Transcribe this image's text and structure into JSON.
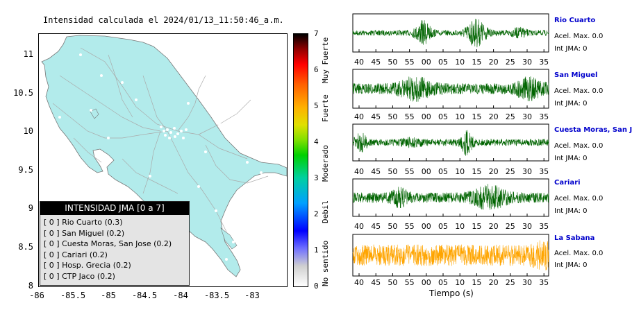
{
  "map": {
    "title": "Intensidad calculada el 2024/01/13_11:50:46_a.m.",
    "yticks": [
      "11",
      "10.5",
      "10",
      "9.5",
      "9",
      "8.5",
      "8"
    ],
    "xticks": [
      "-86",
      "-85.5",
      "-85",
      "-84.5",
      "-84",
      "-83.5",
      "-83"
    ],
    "land_color": "#b2ebeb",
    "legend": {
      "header": "INTENSIDAD JMA [0 a 7]",
      "rows": [
        "[ 0 ] Rio Cuarto (0.3)",
        "[ 0 ] San Miguel (0.2)",
        "[ 0 ] Cuesta Moras, San Jose (0.2)",
        "[ 0 ] Cariari (0.2)",
        "[ 0 ] Hosp. Grecia (0.2)",
        "[ 0 ] CTP Jaco (0.2)"
      ]
    }
  },
  "colorbar": {
    "ticks": [
      "7",
      "6",
      "5",
      "4",
      "3",
      "2",
      "1",
      "0"
    ],
    "words": [
      "Muy Fuerte",
      "Fuerte",
      "Moderado",
      "Debil",
      "No sentido"
    ]
  },
  "waveforms": {
    "xlabel": "Tiempo (s)",
    "stations": [
      {
        "name": "Rio Cuarto",
        "acel": "Acel. Max. 0.0",
        "int": "Int JMA: 0",
        "color": "#006400",
        "ticks": [
          "40",
          "45",
          "50",
          "55",
          "00",
          "05",
          "10",
          "15",
          "20",
          "25",
          "30",
          "35"
        ]
      },
      {
        "name": "San Miguel",
        "acel": "Acel. Max. 0.0",
        "int": "Int JMA: 0",
        "color": "#006400",
        "ticks": [
          "40",
          "45",
          "50",
          "55",
          "00",
          "05",
          "10",
          "15",
          "20",
          "25",
          "30",
          "35"
        ]
      },
      {
        "name": "Cuesta Moras, San Jose",
        "acel": "Acel. Max. 0.0",
        "int": "Int JMA: 0",
        "color": "#006400",
        "ticks": [
          "40",
          "45",
          "50",
          "55",
          "00",
          "05",
          "10",
          "15",
          "20",
          "25",
          "30",
          "35"
        ]
      },
      {
        "name": "Cariari",
        "acel": "Acel. Max. 0.0",
        "int": "Int JMA: 0",
        "color": "#006400",
        "ticks": [
          "40",
          "45",
          "50",
          "55",
          "00",
          "05",
          "10",
          "15",
          "20",
          "25",
          "30",
          "35"
        ]
      },
      {
        "name": "La Sabana",
        "acel": "Acel. Max. 0.0",
        "int": "Int JMA: 0",
        "color": "#ffa500",
        "ticks": [
          "40",
          "45",
          "50",
          "55",
          "00",
          "05",
          "10",
          "15",
          "20",
          "25",
          "30",
          "35"
        ]
      }
    ]
  },
  "chart_data": [
    {
      "type": "map",
      "title": "Intensidad calculada el 2024/01/13_11:50:46_a.m.",
      "xlim": [
        -86,
        -82.6
      ],
      "ylim": [
        8,
        11.3
      ],
      "colorbar": {
        "range": [
          0,
          7
        ],
        "labels": [
          "No sentido",
          "Debil",
          "Moderado",
          "Fuerte",
          "Muy Fuerte"
        ]
      }
    },
    {
      "type": "line",
      "xlabel": "Tiempo (s)",
      "series": [
        {
          "name": "Rio Cuarto",
          "acel_max": 0.0,
          "int_jma": 0
        },
        {
          "name": "San Miguel",
          "acel_max": 0.0,
          "int_jma": 0
        },
        {
          "name": "Cuesta Moras, San Jose",
          "acel_max": 0.0,
          "int_jma": 0
        },
        {
          "name": "Cariari",
          "acel_max": 0.0,
          "int_jma": 0
        },
        {
          "name": "La Sabana",
          "acel_max": 0.0,
          "int_jma": 0
        }
      ]
    }
  ]
}
